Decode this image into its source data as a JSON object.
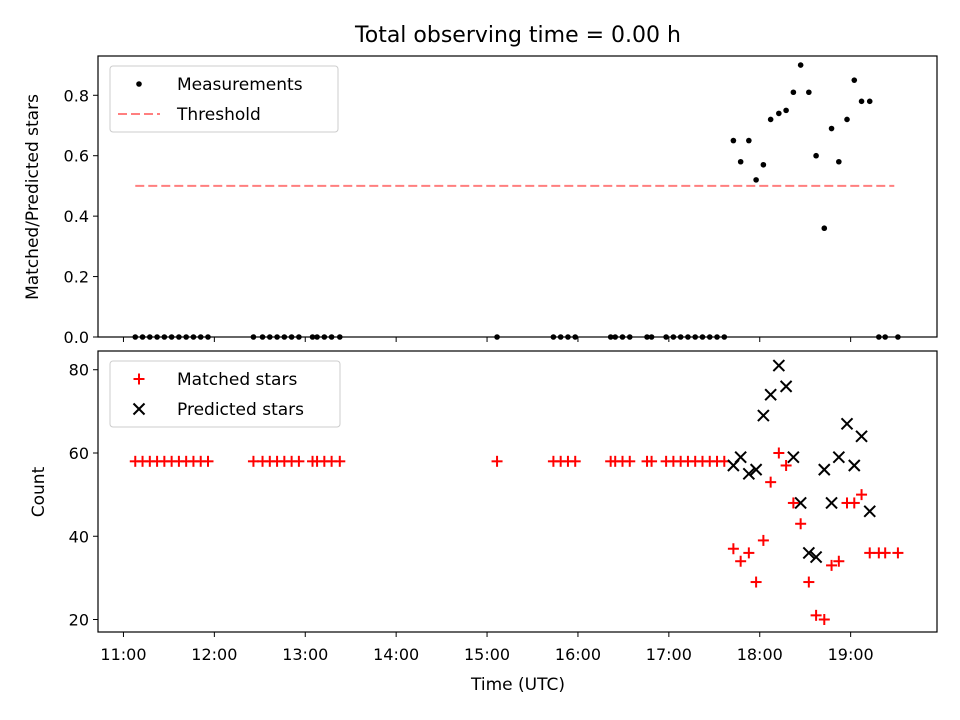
{
  "title": "Total observing time = 0.00 h",
  "colors": {
    "measure": "#000000",
    "threshold": "#ff7f7f",
    "matched": "#ff0000",
    "predicted": "#000000"
  },
  "chart_data": [
    {
      "type": "scatter",
      "ylabel": "Matched/Predicted stars",
      "ylim": [
        0,
        0.93
      ],
      "xlim": [
        10.72,
        19.95
      ],
      "yticks": [
        0.0,
        0.2,
        0.4,
        0.6,
        0.8
      ],
      "ytick_labels": [
        "0.0",
        "0.2",
        "0.4",
        "0.6",
        "0.8"
      ],
      "legend": {
        "location": "upper-left",
        "entries": [
          "Measurements",
          "Threshold"
        ]
      },
      "threshold": {
        "value": 0.5,
        "x_range": [
          11.13,
          19.48
        ]
      },
      "series": [
        {
          "name": "Measurements",
          "points": [
            [
              11.13,
              0
            ],
            [
              11.21,
              0
            ],
            [
              11.29,
              0
            ],
            [
              11.37,
              0
            ],
            [
              11.45,
              0
            ],
            [
              11.53,
              0
            ],
            [
              11.61,
              0
            ],
            [
              11.69,
              0
            ],
            [
              11.77,
              0
            ],
            [
              11.85,
              0
            ],
            [
              11.93,
              0
            ],
            [
              12.43,
              0
            ],
            [
              12.53,
              0
            ],
            [
              12.61,
              0
            ],
            [
              12.69,
              0
            ],
            [
              12.77,
              0
            ],
            [
              12.85,
              0
            ],
            [
              12.93,
              0
            ],
            [
              13.08,
              0
            ],
            [
              13.13,
              0
            ],
            [
              13.21,
              0
            ],
            [
              13.29,
              0
            ],
            [
              13.38,
              0
            ],
            [
              15.11,
              0
            ],
            [
              15.73,
              0
            ],
            [
              15.81,
              0
            ],
            [
              15.89,
              0
            ],
            [
              15.97,
              0
            ],
            [
              16.36,
              0
            ],
            [
              16.41,
              0
            ],
            [
              16.49,
              0
            ],
            [
              16.57,
              0
            ],
            [
              16.76,
              0
            ],
            [
              16.81,
              0
            ],
            [
              16.97,
              0
            ],
            [
              17.05,
              0
            ],
            [
              17.13,
              0
            ],
            [
              17.21,
              0
            ],
            [
              17.29,
              0
            ],
            [
              17.37,
              0
            ],
            [
              17.45,
              0
            ],
            [
              17.53,
              0
            ],
            [
              17.61,
              0
            ],
            [
              17.71,
              0.65
            ],
            [
              17.79,
              0.58
            ],
            [
              17.88,
              0.65
            ],
            [
              17.96,
              0.52
            ],
            [
              18.04,
              0.57
            ],
            [
              18.12,
              0.72
            ],
            [
              18.21,
              0.74
            ],
            [
              18.29,
              0.75
            ],
            [
              18.37,
              0.81
            ],
            [
              18.45,
              0.9
            ],
            [
              18.54,
              0.81
            ],
            [
              18.62,
              0.6
            ],
            [
              18.71,
              0.36
            ],
            [
              18.79,
              0.69
            ],
            [
              18.87,
              0.58
            ],
            [
              18.96,
              0.72
            ],
            [
              19.04,
              0.85
            ],
            [
              19.12,
              0.78
            ],
            [
              19.21,
              0.78
            ],
            [
              19.31,
              0
            ],
            [
              19.38,
              0
            ],
            [
              19.52,
              0
            ]
          ]
        }
      ]
    },
    {
      "type": "scatter",
      "xlabel": "Time (UTC)",
      "ylabel": "Count",
      "ylim": [
        17,
        84.5
      ],
      "xlim": [
        10.72,
        19.95
      ],
      "yticks": [
        20,
        40,
        60,
        80
      ],
      "ytick_labels": [
        "20",
        "40",
        "60",
        "80"
      ],
      "xticks": [
        11,
        12,
        13,
        14,
        15,
        16,
        17,
        18,
        19
      ],
      "xtick_labels": [
        "11:00",
        "12:00",
        "13:00",
        "14:00",
        "15:00",
        "16:00",
        "17:00",
        "18:00",
        "19:00"
      ],
      "legend": {
        "location": "upper-left",
        "entries": [
          "Matched stars",
          "Predicted stars"
        ]
      },
      "series": [
        {
          "name": "Matched stars",
          "marker": "plus",
          "points": [
            [
              11.13,
              58
            ],
            [
              11.21,
              58
            ],
            [
              11.29,
              58
            ],
            [
              11.37,
              58
            ],
            [
              11.45,
              58
            ],
            [
              11.53,
              58
            ],
            [
              11.61,
              58
            ],
            [
              11.69,
              58
            ],
            [
              11.77,
              58
            ],
            [
              11.85,
              58
            ],
            [
              11.93,
              58
            ],
            [
              12.43,
              58
            ],
            [
              12.53,
              58
            ],
            [
              12.61,
              58
            ],
            [
              12.69,
              58
            ],
            [
              12.77,
              58
            ],
            [
              12.85,
              58
            ],
            [
              12.93,
              58
            ],
            [
              13.08,
              58
            ],
            [
              13.13,
              58
            ],
            [
              13.21,
              58
            ],
            [
              13.29,
              58
            ],
            [
              13.38,
              58
            ],
            [
              15.11,
              58
            ],
            [
              15.73,
              58
            ],
            [
              15.81,
              58
            ],
            [
              15.89,
              58
            ],
            [
              15.97,
              58
            ],
            [
              16.36,
              58
            ],
            [
              16.41,
              58
            ],
            [
              16.49,
              58
            ],
            [
              16.57,
              58
            ],
            [
              16.76,
              58
            ],
            [
              16.81,
              58
            ],
            [
              16.97,
              58
            ],
            [
              17.05,
              58
            ],
            [
              17.13,
              58
            ],
            [
              17.21,
              58
            ],
            [
              17.29,
              58
            ],
            [
              17.37,
              58
            ],
            [
              17.45,
              58
            ],
            [
              17.53,
              58
            ],
            [
              17.61,
              58
            ],
            [
              17.71,
              37
            ],
            [
              17.79,
              34
            ],
            [
              17.88,
              36
            ],
            [
              17.96,
              29
            ],
            [
              18.04,
              39
            ],
            [
              18.12,
              53
            ],
            [
              18.21,
              60
            ],
            [
              18.29,
              57
            ],
            [
              18.37,
              48
            ],
            [
              18.45,
              43
            ],
            [
              18.54,
              29
            ],
            [
              18.62,
              21
            ],
            [
              18.71,
              20
            ],
            [
              18.79,
              33
            ],
            [
              18.87,
              34
            ],
            [
              18.96,
              48
            ],
            [
              19.04,
              48
            ],
            [
              19.12,
              50
            ],
            [
              19.21,
              36
            ],
            [
              19.31,
              36
            ],
            [
              19.38,
              36
            ],
            [
              19.52,
              36
            ]
          ]
        },
        {
          "name": "Predicted stars",
          "marker": "x",
          "points": [
            [
              17.71,
              57
            ],
            [
              17.79,
              59
            ],
            [
              17.88,
              55
            ],
            [
              17.96,
              56
            ],
            [
              18.04,
              69
            ],
            [
              18.12,
              74
            ],
            [
              18.21,
              81
            ],
            [
              18.29,
              76
            ],
            [
              18.37,
              59
            ],
            [
              18.45,
              48
            ],
            [
              18.54,
              36
            ],
            [
              18.62,
              35
            ],
            [
              18.71,
              56
            ],
            [
              18.79,
              48
            ],
            [
              18.87,
              59
            ],
            [
              18.96,
              67
            ],
            [
              19.04,
              57
            ],
            [
              19.12,
              64
            ],
            [
              19.21,
              46
            ]
          ]
        }
      ]
    }
  ]
}
